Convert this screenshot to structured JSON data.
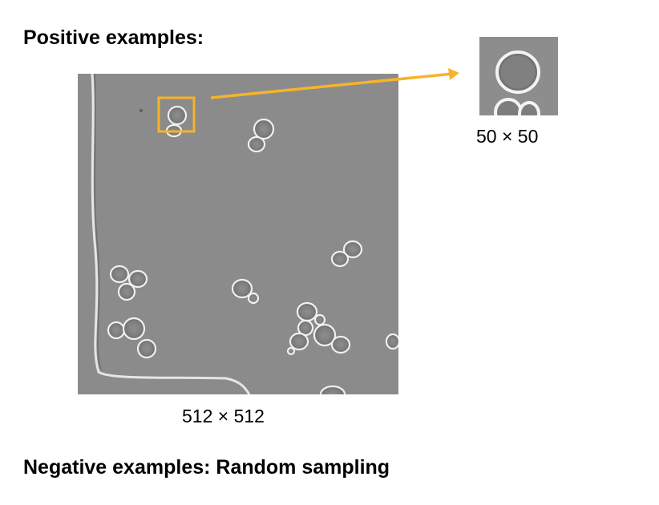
{
  "headings": {
    "positive": "Positive examples:",
    "negative": "Negative examples:  Random sampling"
  },
  "labels": {
    "full_image_size": "512 × 512",
    "crop_size": "50 × 50"
  },
  "colors": {
    "highlight": "#f7b32b",
    "background_gray": "#8a8a8a",
    "cell_edge": "#f2f2f2"
  }
}
